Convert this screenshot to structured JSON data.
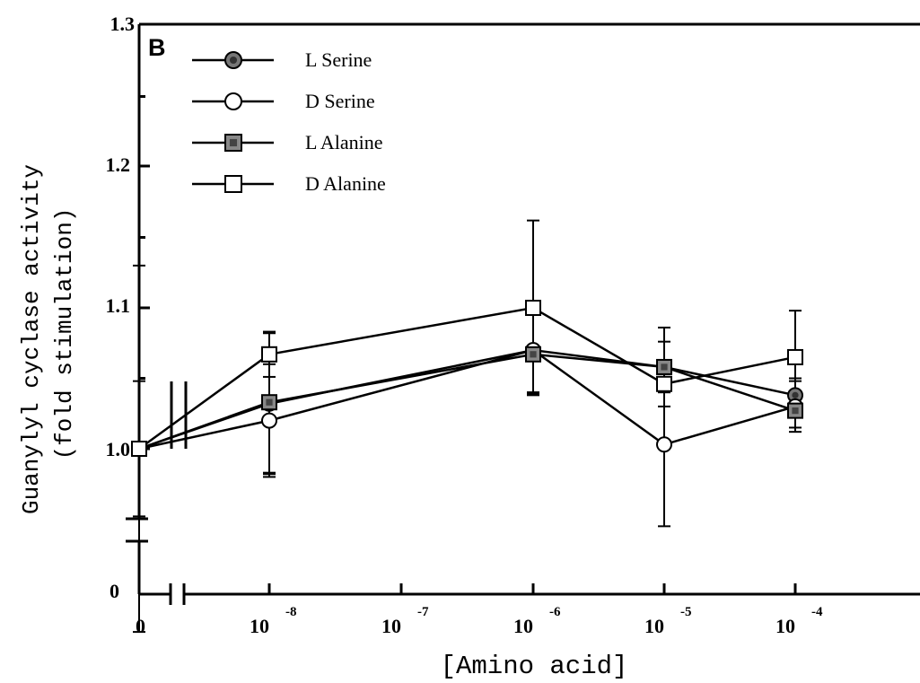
{
  "chart_data": {
    "type": "line",
    "panel_label": "B",
    "xlabel": "[Amino acid]",
    "ylabel_line1": "Guanylyl cyclase activity",
    "ylabel_line2": "(fold stimulation)",
    "x_ticks": [
      {
        "base": "0",
        "exp": ""
      },
      {
        "base": "10",
        "exp": "-8"
      },
      {
        "base": "10",
        "exp": "-7"
      },
      {
        "base": "10",
        "exp": "-6"
      },
      {
        "base": "10",
        "exp": "-5"
      },
      {
        "base": "10",
        "exp": "-4"
      }
    ],
    "y_ticks": [
      "1.3",
      "1.2",
      "1.1",
      "1.0",
      "0"
    ],
    "ylim": [
      0.95,
      1.3
    ],
    "axis_breaks": {
      "x": true,
      "y": true
    },
    "series": [
      {
        "name": "L Serine",
        "marker": "filled-circle",
        "x": [
          "0",
          "10^-8",
          "10^-6",
          "10^-5",
          "10^-4"
        ],
        "y": [
          1.0,
          1.032,
          1.07,
          1.058,
          1.038
        ],
        "err": [
          0,
          0.05,
          0.03,
          0.028,
          0.012
        ]
      },
      {
        "name": "D Serine",
        "marker": "open-circle",
        "x": [
          "0",
          "10^-8",
          "10^-6",
          "10^-5",
          "10^-4"
        ],
        "y": [
          1.0,
          1.02,
          1.07,
          1.003,
          1.03
        ],
        "err": [
          0.048,
          0.04,
          0.03,
          0.058,
          0.018
        ]
      },
      {
        "name": "L Alanine",
        "marker": "filled-square",
        "x": [
          "0",
          "10^-8",
          "10^-6",
          "10^-5",
          "10^-4"
        ],
        "y": [
          1.0,
          1.033,
          1.067,
          1.058,
          1.027
        ],
        "err": [
          0,
          0.05,
          0.028,
          0.018,
          0.012
        ]
      },
      {
        "name": "D Alanine",
        "marker": "open-square",
        "x": [
          "0",
          "10^-8",
          "10^-6",
          "10^-5",
          "10^-4"
        ],
        "y": [
          1.0,
          1.067,
          1.1,
          1.046,
          1.065
        ],
        "err": [
          0.13,
          0.016,
          0.062,
          0.04,
          0.033
        ]
      }
    ],
    "legend_position": "top-left"
  }
}
